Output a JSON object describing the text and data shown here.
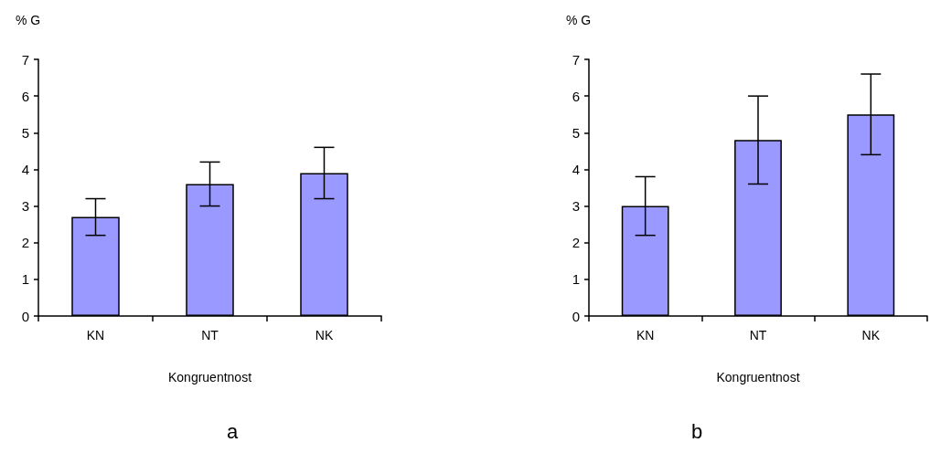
{
  "chart_data": [
    {
      "type": "bar",
      "title": "a",
      "xlabel": "Kongruentnost",
      "ylabel": "% G",
      "categories": [
        "KN",
        "NT",
        "NK"
      ],
      "values": [
        2.7,
        3.6,
        3.9
      ],
      "errors": [
        0.5,
        0.6,
        0.7
      ],
      "color": "#9999ff",
      "ylim": [
        0,
        7
      ],
      "yticks": [
        0,
        1,
        2,
        3,
        4,
        5,
        6,
        7
      ]
    },
    {
      "type": "bar",
      "title": "b",
      "xlabel": "Kongruentnost",
      "ylabel": "% G",
      "categories": [
        "KN",
        "NT",
        "NK"
      ],
      "values": [
        3.0,
        4.8,
        5.5
      ],
      "errors": [
        0.8,
        1.2,
        1.1
      ],
      "color": "#9999ff",
      "ylim": [
        0,
        7
      ],
      "yticks": [
        0,
        1,
        2,
        3,
        4,
        5,
        6,
        7
      ]
    }
  ]
}
